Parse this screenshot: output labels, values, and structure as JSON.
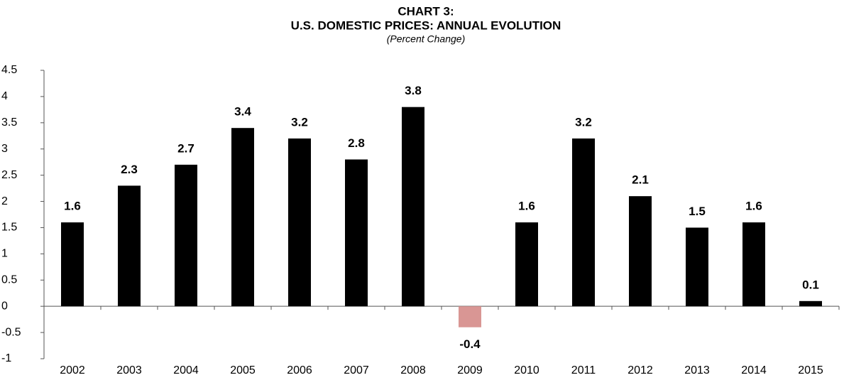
{
  "chart_data": {
    "type": "bar",
    "title_lines": [
      "CHART 3:",
      "U.S. DOMESTIC PRICES: ANNUAL EVOLUTION"
    ],
    "subtitle": "(Percent Change)",
    "categories": [
      "2002",
      "2003",
      "2004",
      "2005",
      "2006",
      "2007",
      "2008",
      "2009",
      "2010",
      "2011",
      "2012",
      "2013",
      "2014",
      "2015"
    ],
    "values": [
      1.6,
      2.3,
      2.7,
      3.4,
      3.2,
      2.8,
      3.8,
      -0.4,
      1.6,
      3.2,
      2.1,
      1.5,
      1.6,
      0.1
    ],
    "colors": [
      "#000000",
      "#000000",
      "#000000",
      "#000000",
      "#000000",
      "#000000",
      "#000000",
      "#d99694",
      "#000000",
      "#000000",
      "#000000",
      "#000000",
      "#000000",
      "#000000"
    ],
    "ylim": [
      -1,
      4.5
    ],
    "yticks": [
      -1,
      -0.5,
      0,
      0.5,
      1,
      1.5,
      2,
      2.5,
      3,
      3.5,
      4,
      4.5
    ],
    "grid": false
  }
}
